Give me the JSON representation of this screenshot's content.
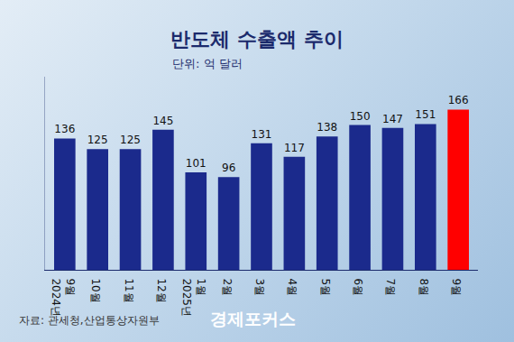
{
  "chart_data": {
    "type": "bar",
    "title": "반도체 수출액 추이",
    "subtitle": "단위: 억 달러",
    "categories": [
      "9월\n2024년",
      "10월",
      "11월",
      "12월",
      "1월\n2025년",
      "2월",
      "3월",
      "4월",
      "5월",
      "6월",
      "7월",
      "8월",
      "9월"
    ],
    "values": [
      136,
      125,
      125,
      145,
      101,
      96,
      131,
      117,
      138,
      150,
      147,
      151,
      166
    ],
    "colors": [
      "#1b2a8c",
      "#1b2a8c",
      "#1b2a8c",
      "#1b2a8c",
      "#1b2a8c",
      "#1b2a8c",
      "#1b2a8c",
      "#1b2a8c",
      "#1b2a8c",
      "#1b2a8c",
      "#1b2a8c",
      "#1b2a8c",
      "#ff0000"
    ],
    "ylim": [
      0,
      200
    ],
    "data_labels": true,
    "tick_labels": "x",
    "grid": false,
    "source": "자료: 관세청,산업통상자원부",
    "logo": "경제포커스"
  }
}
